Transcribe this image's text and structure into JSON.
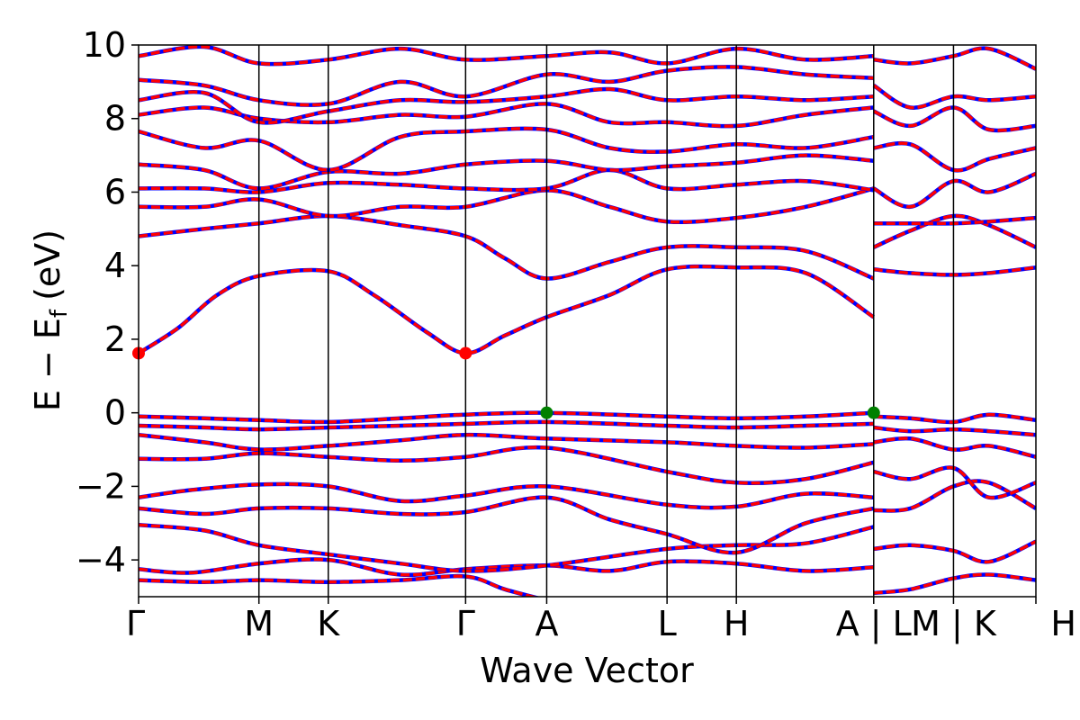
{
  "chart_data": {
    "type": "line",
    "title": "",
    "xlabel": "Wave Vector",
    "ylabel_main": "E − E",
    "ylabel_sub": "f",
    "ylabel_unit": "(eV)",
    "ylim": [
      -5,
      10
    ],
    "yticks": [
      -4,
      -2,
      0,
      2,
      4,
      6,
      8,
      10
    ],
    "ytick_labels": [
      "−4",
      "−2",
      "0",
      "2",
      "4",
      "6",
      "8",
      "10"
    ],
    "xlim": [
      0,
      6.86
    ],
    "kpoint_positions": [
      0,
      0.92,
      1.45,
      2.5,
      3.12,
      4.04,
      4.57,
      5.62,
      6.23,
      6.86
    ],
    "kpoint_labels": [
      "Γ",
      "M",
      "K",
      "Γ",
      "A",
      "L",
      "H",
      "A | L",
      "M | K",
      "H"
    ],
    "series_colors": {
      "band_up": "#ff0000",
      "band_down": "#0000ff"
    },
    "marker_colors": {
      "cbm": "#ff0000",
      "vbm": "#008000"
    },
    "markers": [
      {
        "kind": "cbm",
        "x": 0,
        "y": 1.62
      },
      {
        "kind": "cbm",
        "x": 2.5,
        "y": 1.62
      },
      {
        "kind": "vbm",
        "x": 3.12,
        "y": 0.0
      },
      {
        "kind": "vbm",
        "x": 5.62,
        "y": 0.0
      }
    ],
    "bands": [
      [
        [
          0,
          -4.55
        ],
        [
          0.5,
          -4.6
        ],
        [
          0.92,
          -4.55
        ],
        [
          1.45,
          -4.6
        ],
        [
          2.0,
          -4.55
        ],
        [
          2.5,
          -4.45
        ],
        [
          2.8,
          -4.8
        ],
        [
          3.12,
          -5.1
        ]
      ],
      [
        [
          0,
          -4.25
        ],
        [
          0.4,
          -4.35
        ],
        [
          0.92,
          -4.1
        ],
        [
          1.45,
          -4.0
        ],
        [
          2.0,
          -4.4
        ],
        [
          2.5,
          -4.25
        ],
        [
          3.12,
          -4.15
        ],
        [
          3.6,
          -4.3
        ],
        [
          4.04,
          -4.05
        ],
        [
          4.57,
          -4.1
        ],
        [
          5.1,
          -4.3
        ],
        [
          5.62,
          -4.2
        ]
      ],
      [
        [
          0,
          -3.05
        ],
        [
          0.5,
          -3.2
        ],
        [
          0.92,
          -3.6
        ],
        [
          1.45,
          -3.85
        ],
        [
          2.0,
          -4.1
        ],
        [
          2.5,
          -4.3
        ],
        [
          3.12,
          -4.15
        ],
        [
          4.04,
          -3.7
        ],
        [
          4.57,
          -3.6
        ],
        [
          5.1,
          -3.55
        ],
        [
          5.62,
          -3.1
        ]
      ],
      [
        [
          0,
          -2.6
        ],
        [
          0.5,
          -2.75
        ],
        [
          0.92,
          -2.6
        ],
        [
          1.45,
          -2.6
        ],
        [
          2.0,
          -2.75
        ],
        [
          2.5,
          -2.7
        ],
        [
          3.12,
          -2.3
        ],
        [
          3.6,
          -2.9
        ],
        [
          4.04,
          -3.3
        ],
        [
          4.57,
          -3.8
        ],
        [
          5.1,
          -3.0
        ],
        [
          5.62,
          -2.6
        ]
      ],
      [
        [
          0,
          -2.3
        ],
        [
          0.4,
          -2.1
        ],
        [
          0.92,
          -1.95
        ],
        [
          1.45,
          -2.0
        ],
        [
          2.0,
          -2.4
        ],
        [
          2.5,
          -2.25
        ],
        [
          3.12,
          -2.0
        ],
        [
          4.04,
          -2.5
        ],
        [
          4.57,
          -2.55
        ],
        [
          5.1,
          -2.2
        ],
        [
          5.62,
          -2.3
        ]
      ],
      [
        [
          0,
          -1.25
        ],
        [
          0.5,
          -1.25
        ],
        [
          0.92,
          -1.1
        ],
        [
          1.45,
          -1.2
        ],
        [
          2.0,
          -1.3
        ],
        [
          2.5,
          -1.2
        ],
        [
          3.12,
          -0.95
        ],
        [
          4.04,
          -1.6
        ],
        [
          4.57,
          -1.9
        ],
        [
          5.1,
          -1.8
        ],
        [
          5.62,
          -1.35
        ]
      ],
      [
        [
          0,
          -0.6
        ],
        [
          0.5,
          -0.8
        ],
        [
          0.92,
          -1.0
        ],
        [
          1.45,
          -0.9
        ],
        [
          2.0,
          -0.75
        ],
        [
          2.5,
          -0.6
        ],
        [
          3.12,
          -0.7
        ],
        [
          4.04,
          -0.8
        ],
        [
          4.57,
          -0.9
        ],
        [
          5.1,
          -0.95
        ],
        [
          5.62,
          -0.85
        ]
      ],
      [
        [
          0,
          -0.35
        ],
        [
          0.5,
          -0.4
        ],
        [
          0.92,
          -0.45
        ],
        [
          1.45,
          -0.4
        ],
        [
          2.0,
          -0.35
        ],
        [
          2.5,
          -0.3
        ],
        [
          3.12,
          -0.25
        ],
        [
          4.04,
          -0.35
        ],
        [
          4.57,
          -0.4
        ],
        [
          5.1,
          -0.35
        ],
        [
          5.62,
          -0.3
        ]
      ],
      [
        [
          0,
          -0.1
        ],
        [
          0.5,
          -0.15
        ],
        [
          0.92,
          -0.2
        ],
        [
          1.45,
          -0.25
        ],
        [
          2.0,
          -0.15
        ],
        [
          2.5,
          -0.05
        ],
        [
          3.12,
          0.0
        ],
        [
          4.04,
          -0.1
        ],
        [
          4.57,
          -0.15
        ],
        [
          5.1,
          -0.1
        ],
        [
          5.62,
          0.0
        ]
      ],
      [
        [
          0,
          1.62
        ],
        [
          0.3,
          2.3
        ],
        [
          0.6,
          3.2
        ],
        [
          0.92,
          3.72
        ],
        [
          1.45,
          3.85
        ],
        [
          1.8,
          3.2
        ],
        [
          2.2,
          2.2
        ],
        [
          2.5,
          1.62
        ],
        [
          2.8,
          2.1
        ],
        [
          3.12,
          2.6
        ],
        [
          3.6,
          3.2
        ],
        [
          4.04,
          3.9
        ],
        [
          4.57,
          3.95
        ],
        [
          5.1,
          3.8
        ],
        [
          5.62,
          2.6
        ]
      ],
      [
        [
          0,
          4.8
        ],
        [
          0.5,
          5.0
        ],
        [
          0.92,
          5.15
        ],
        [
          1.45,
          5.35
        ],
        [
          2.0,
          5.1
        ],
        [
          2.5,
          4.8
        ],
        [
          2.8,
          4.2
        ],
        [
          3.12,
          3.65
        ],
        [
          3.6,
          4.1
        ],
        [
          4.04,
          4.5
        ],
        [
          4.57,
          4.5
        ],
        [
          5.1,
          4.4
        ],
        [
          5.62,
          3.65
        ]
      ],
      [
        [
          0,
          5.6
        ],
        [
          0.5,
          5.6
        ],
        [
          0.92,
          5.8
        ],
        [
          1.45,
          5.35
        ],
        [
          2.0,
          5.6
        ],
        [
          2.5,
          5.6
        ],
        [
          3.12,
          6.05
        ],
        [
          3.6,
          5.6
        ],
        [
          4.04,
          5.2
        ],
        [
          4.57,
          5.3
        ],
        [
          5.1,
          5.6
        ],
        [
          5.62,
          6.1
        ]
      ],
      [
        [
          0,
          6.1
        ],
        [
          0.5,
          6.1
        ],
        [
          0.92,
          6.0
        ],
        [
          1.45,
          6.25
        ],
        [
          2.0,
          6.2
        ],
        [
          2.5,
          6.1
        ],
        [
          3.12,
          6.1
        ],
        [
          3.6,
          6.6
        ],
        [
          4.04,
          6.1
        ],
        [
          4.57,
          6.2
        ],
        [
          5.1,
          6.3
        ],
        [
          5.62,
          6.05
        ]
      ],
      [
        [
          0,
          6.75
        ],
        [
          0.5,
          6.6
        ],
        [
          0.92,
          6.1
        ],
        [
          1.45,
          6.55
        ],
        [
          2.0,
          6.5
        ],
        [
          2.5,
          6.75
        ],
        [
          3.12,
          6.85
        ],
        [
          3.6,
          6.6
        ],
        [
          4.04,
          6.7
        ],
        [
          4.57,
          6.8
        ],
        [
          5.1,
          7.0
        ],
        [
          5.62,
          6.85
        ]
      ],
      [
        [
          0,
          7.65
        ],
        [
          0.5,
          7.2
        ],
        [
          0.92,
          7.4
        ],
        [
          1.45,
          6.6
        ],
        [
          2.0,
          7.5
        ],
        [
          2.5,
          7.65
        ],
        [
          3.12,
          7.7
        ],
        [
          3.6,
          7.2
        ],
        [
          4.04,
          7.1
        ],
        [
          4.57,
          7.3
        ],
        [
          5.1,
          7.2
        ],
        [
          5.62,
          7.5
        ]
      ],
      [
        [
          0,
          8.1
        ],
        [
          0.5,
          8.3
        ],
        [
          0.92,
          8.0
        ],
        [
          1.45,
          7.9
        ],
        [
          2.0,
          8.1
        ],
        [
          2.5,
          8.05
        ],
        [
          3.12,
          8.4
        ],
        [
          3.6,
          7.9
        ],
        [
          4.04,
          7.9
        ],
        [
          4.57,
          7.8
        ],
        [
          5.1,
          8.1
        ],
        [
          5.62,
          8.3
        ]
      ],
      [
        [
          0,
          8.5
        ],
        [
          0.5,
          8.7
        ],
        [
          0.92,
          7.9
        ],
        [
          1.45,
          8.2
        ],
        [
          2.0,
          8.5
        ],
        [
          2.5,
          8.45
        ],
        [
          3.12,
          8.6
        ],
        [
          3.6,
          8.8
        ],
        [
          4.04,
          8.5
        ],
        [
          4.57,
          8.6
        ],
        [
          5.1,
          8.5
        ],
        [
          5.62,
          8.6
        ]
      ],
      [
        [
          0,
          9.05
        ],
        [
          0.5,
          8.9
        ],
        [
          0.92,
          8.5
        ],
        [
          1.45,
          8.4
        ],
        [
          2.0,
          9.0
        ],
        [
          2.5,
          8.6
        ],
        [
          3.12,
          9.2
        ],
        [
          3.6,
          9.0
        ],
        [
          4.04,
          9.3
        ],
        [
          4.57,
          9.4
        ],
        [
          5.1,
          9.2
        ],
        [
          5.62,
          9.1
        ]
      ],
      [
        [
          0,
          9.7
        ],
        [
          0.5,
          9.95
        ],
        [
          0.92,
          9.5
        ],
        [
          1.45,
          9.6
        ],
        [
          2.0,
          9.9
        ],
        [
          2.5,
          9.6
        ],
        [
          3.12,
          9.7
        ],
        [
          3.6,
          9.8
        ],
        [
          4.04,
          9.5
        ],
        [
          4.57,
          9.9
        ],
        [
          5.1,
          9.6
        ],
        [
          5.62,
          9.7
        ]
      ],
      [
        [
          5.62,
          -4.9
        ],
        [
          5.9,
          -4.8
        ],
        [
          6.23,
          -4.5
        ],
        [
          6.5,
          -4.4
        ],
        [
          6.86,
          -4.55
        ]
      ],
      [
        [
          5.62,
          -3.7
        ],
        [
          5.9,
          -3.6
        ],
        [
          6.23,
          -3.75
        ],
        [
          6.5,
          -4.05
        ],
        [
          6.86,
          -3.5
        ]
      ],
      [
        [
          5.62,
          -2.65
        ],
        [
          5.9,
          -2.6
        ],
        [
          6.23,
          -2.0
        ],
        [
          6.5,
          -1.9
        ],
        [
          6.86,
          -2.6
        ]
      ],
      [
        [
          5.62,
          -1.6
        ],
        [
          5.9,
          -1.8
        ],
        [
          6.23,
          -1.5
        ],
        [
          6.5,
          -2.3
        ],
        [
          6.86,
          -1.9
        ]
      ],
      [
        [
          5.62,
          -0.8
        ],
        [
          5.9,
          -0.7
        ],
        [
          6.23,
          -1.0
        ],
        [
          6.5,
          -0.9
        ],
        [
          6.86,
          -1.2
        ]
      ],
      [
        [
          5.62,
          -0.4
        ],
        [
          5.9,
          -0.5
        ],
        [
          6.23,
          -0.45
        ],
        [
          6.5,
          -0.5
        ],
        [
          6.86,
          -0.6
        ]
      ],
      [
        [
          5.62,
          -0.1
        ],
        [
          5.9,
          -0.15
        ],
        [
          6.23,
          -0.25
        ],
        [
          6.5,
          -0.05
        ],
        [
          6.86,
          -0.2
        ]
      ],
      [
        [
          5.62,
          3.9
        ],
        [
          5.9,
          3.8
        ],
        [
          6.23,
          3.75
        ],
        [
          6.5,
          3.8
        ],
        [
          6.86,
          3.95
        ]
      ],
      [
        [
          5.62,
          4.5
        ],
        [
          5.9,
          4.95
        ],
        [
          6.23,
          5.35
        ],
        [
          6.5,
          5.1
        ],
        [
          6.86,
          4.5
        ]
      ],
      [
        [
          5.62,
          5.15
        ],
        [
          5.9,
          5.15
        ],
        [
          6.23,
          5.15
        ],
        [
          6.5,
          5.2
        ],
        [
          6.86,
          5.3
        ]
      ],
      [
        [
          5.62,
          6.1
        ],
        [
          5.9,
          5.6
        ],
        [
          6.23,
          6.3
        ],
        [
          6.5,
          6.0
        ],
        [
          6.86,
          6.5
        ]
      ],
      [
        [
          5.62,
          7.2
        ],
        [
          5.9,
          7.3
        ],
        [
          6.23,
          6.6
        ],
        [
          6.5,
          6.9
        ],
        [
          6.86,
          7.2
        ]
      ],
      [
        [
          5.62,
          8.2
        ],
        [
          5.9,
          7.8
        ],
        [
          6.23,
          8.3
        ],
        [
          6.5,
          7.7
        ],
        [
          6.86,
          7.8
        ]
      ],
      [
        [
          5.62,
          8.9
        ],
        [
          5.9,
          8.3
        ],
        [
          6.23,
          8.6
        ],
        [
          6.5,
          8.5
        ],
        [
          6.86,
          8.6
        ]
      ],
      [
        [
          5.62,
          9.6
        ],
        [
          5.9,
          9.5
        ],
        [
          6.23,
          9.7
        ],
        [
          6.5,
          9.9
        ],
        [
          6.86,
          9.35
        ]
      ]
    ]
  }
}
